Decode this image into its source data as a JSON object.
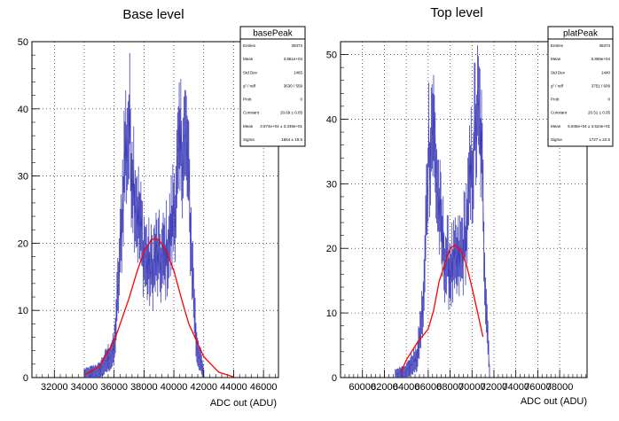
{
  "chart_data": [
    {
      "type": "histogram",
      "title": "Base level",
      "xlabel": "ADC out (ADU)",
      "ylabel": "",
      "xlim": [
        30500,
        47000
      ],
      "ylim": [
        0,
        50
      ],
      "xticks": [
        "32000",
        "34000",
        "36000",
        "38000",
        "40000",
        "42000",
        "44000",
        "46000"
      ],
      "yticks": [
        "0",
        "10",
        "20",
        "30",
        "40",
        "50"
      ],
      "grid": true,
      "colors": {
        "histogram": "#3b3bb8",
        "fit": "#ff0000"
      },
      "histogram": {
        "name": "basePeak",
        "x": [
          34000,
          35000,
          36000,
          36400,
          36700,
          37000,
          37300,
          37600,
          37900,
          38200,
          38500,
          38800,
          39100,
          39400,
          39700,
          40000,
          40300,
          40600,
          40900,
          41200,
          41500,
          42000
        ],
        "values": [
          0.5,
          1,
          4,
          18,
          33,
          37,
          30,
          24,
          20,
          17,
          16,
          18,
          17,
          18,
          20,
          25,
          31,
          36,
          33,
          18,
          5,
          0.5
        ]
      },
      "fit": {
        "function": "gaus",
        "constant": 20.69,
        "mean": 38740,
        "sigma": 1664,
        "x": [
          34000,
          35000,
          36000,
          37000,
          37500,
          38000,
          38500,
          38740,
          39000,
          39500,
          40000,
          40500,
          41000,
          42000,
          43000,
          44000
        ],
        "values": [
          0.4,
          1.6,
          5.4,
          11.8,
          15.5,
          18.8,
          20.5,
          20.7,
          20.5,
          18.8,
          15.9,
          11.8,
          8.0,
          3.1,
          0.8,
          0.1
        ]
      },
      "stats": {
        "title": "basePeak",
        "rows": [
          [
            "Entries",
            "39373"
          ],
          [
            "Mean",
            "3.861e+04"
          ],
          [
            "Std Dev",
            "1465"
          ],
          [
            "χ² / ndf",
            "3630 / 559"
          ],
          [
            "Prob",
            "0"
          ],
          [
            "Constant",
            "20.69 ± 0.05"
          ],
          [
            "Mean",
            "3.874e+04 ± 3.349e+01"
          ],
          [
            "Sigma",
            "1664 ± 18.5"
          ]
        ]
      }
    },
    {
      "type": "histogram",
      "title": "Top level",
      "xlabel": "ADC out (ADU)",
      "ylabel": "",
      "xlim": [
        58000,
        80500
      ],
      "ylim": [
        0,
        52
      ],
      "xticks": [
        "60000",
        "62000",
        "64000",
        "66000",
        "68000",
        "70000",
        "72000",
        "74000",
        "76000",
        "78000"
      ],
      "yticks": [
        "0",
        "10",
        "20",
        "30",
        "40",
        "50"
      ],
      "grid": true,
      "colors": {
        "histogram": "#3b3bb8",
        "fit": "#ff0000"
      },
      "histogram": {
        "name": "platPeak",
        "x": [
          63000,
          64000,
          65000,
          65600,
          66000,
          66400,
          66800,
          67200,
          67600,
          68000,
          68400,
          68800,
          69200,
          69600,
          70000,
          70400,
          70800,
          71200,
          71600
        ],
        "values": [
          0.5,
          1,
          3,
          12,
          35,
          40,
          30,
          22,
          18,
          17,
          17,
          18,
          20,
          25,
          33,
          40,
          38,
          15,
          1
        ]
      },
      "fit": {
        "function": "gaus",
        "constant": 20.51,
        "mean": 68450,
        "sigma": 1727,
        "x": [
          63500,
          64000,
          65000,
          66000,
          66500,
          67000,
          67500,
          68000,
          68450,
          69000,
          69500,
          70000,
          70500,
          71000
        ],
        "values": [
          0.8,
          2.7,
          5.4,
          7.5,
          10.4,
          14.9,
          17.5,
          20.0,
          20.5,
          19.6,
          17.4,
          13.9,
          10.2,
          6.3
        ]
      },
      "stats": {
        "title": "platPeak",
        "rows": [
          [
            "Entries",
            "39373"
          ],
          [
            "Mean",
            "6.869e+04"
          ],
          [
            "Std Dev",
            "1440"
          ],
          [
            "χ² / ndf",
            "3751 / 609"
          ],
          [
            "Prob",
            "0"
          ],
          [
            "Constant",
            "20.51 ± 0.05"
          ],
          [
            "Mean",
            "6.845e+04 ± 3.524e+01"
          ],
          [
            "Sigma",
            "1727 ± 22.5"
          ]
        ]
      }
    }
  ]
}
